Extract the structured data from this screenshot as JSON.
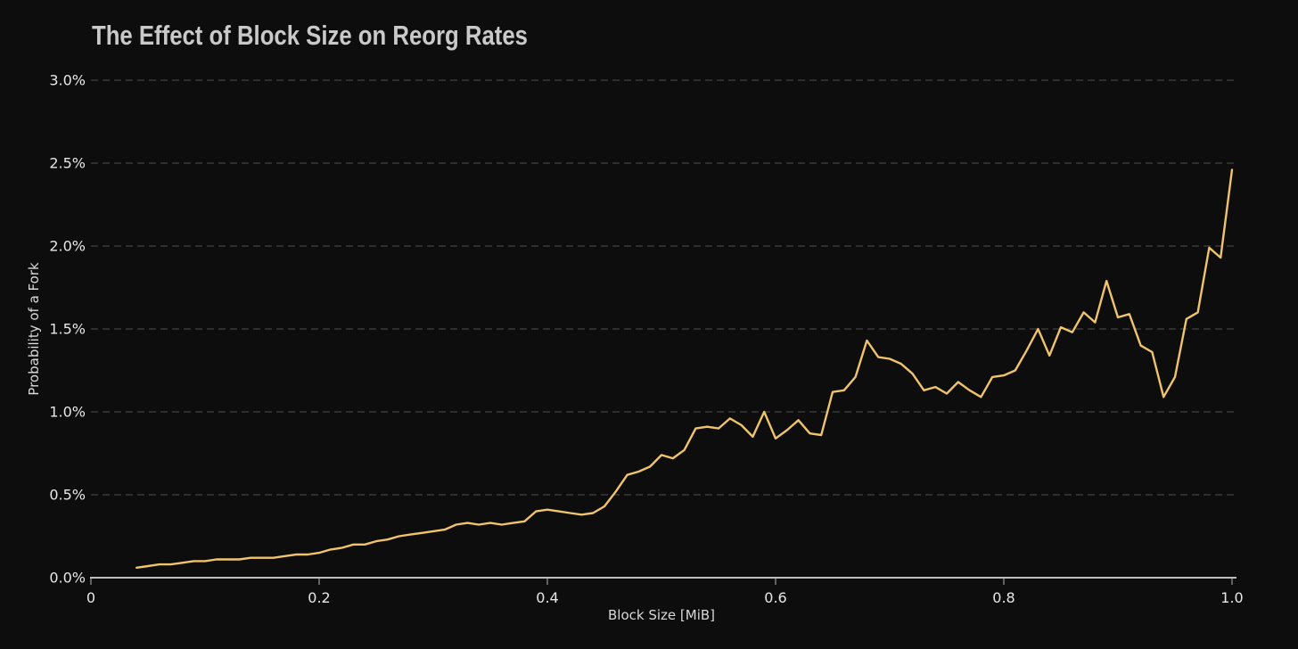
{
  "page": {
    "background": "#0d0d0d"
  },
  "chart_data": {
    "type": "line",
    "title": "The Effect of Block Size on Reorg Rates",
    "xlabel": "Block Size [MiB]",
    "ylabel": "Probability of a Fork",
    "xlim": [
      0,
      1.0
    ],
    "ylim": [
      0,
      3.0
    ],
    "grid": "horizontal dashed gridlines at each 0.5%",
    "legend_position": "none",
    "x_ticks": {
      "values": [
        0,
        0.2,
        0.4,
        0.6,
        0.8,
        1.0
      ],
      "labels": [
        "0",
        "0.2",
        "0.4",
        "0.6",
        "0.8",
        "1.0"
      ]
    },
    "y_ticks": {
      "values": [
        0,
        0.5,
        1.0,
        1.5,
        2.0,
        2.5,
        3.0
      ],
      "labels": [
        "0.0%",
        "0.5%",
        "1.0%",
        "1.5%",
        "2.0%",
        "2.5%",
        "3.0%"
      ]
    },
    "colors": {
      "background": "#0d0d0d",
      "line": "#f0c46a",
      "grid": "#4f4f4f",
      "axis": "#d8d8d8",
      "tick_mark": "#9a9a9a",
      "tick_text": "#e8e8e8",
      "title_text": "#c9c9c9",
      "axis_label_text": "#d9d9d9"
    },
    "series": [
      {
        "name": "Probability of a Fork",
        "color": "#f0c46a",
        "points": [
          [
            0.04,
            0.06
          ],
          [
            0.05,
            0.07
          ],
          [
            0.06,
            0.08
          ],
          [
            0.07,
            0.08
          ],
          [
            0.08,
            0.09
          ],
          [
            0.09,
            0.1
          ],
          [
            0.1,
            0.1
          ],
          [
            0.11,
            0.11
          ],
          [
            0.12,
            0.11
          ],
          [
            0.13,
            0.11
          ],
          [
            0.14,
            0.12
          ],
          [
            0.15,
            0.12
          ],
          [
            0.16,
            0.12
          ],
          [
            0.17,
            0.13
          ],
          [
            0.18,
            0.14
          ],
          [
            0.19,
            0.14
          ],
          [
            0.2,
            0.15
          ],
          [
            0.21,
            0.17
          ],
          [
            0.22,
            0.18
          ],
          [
            0.23,
            0.2
          ],
          [
            0.24,
            0.2
          ],
          [
            0.25,
            0.22
          ],
          [
            0.26,
            0.23
          ],
          [
            0.27,
            0.25
          ],
          [
            0.28,
            0.26
          ],
          [
            0.29,
            0.27
          ],
          [
            0.3,
            0.28
          ],
          [
            0.31,
            0.29
          ],
          [
            0.32,
            0.32
          ],
          [
            0.33,
            0.33
          ],
          [
            0.34,
            0.32
          ],
          [
            0.35,
            0.33
          ],
          [
            0.36,
            0.32
          ],
          [
            0.37,
            0.33
          ],
          [
            0.38,
            0.34
          ],
          [
            0.39,
            0.4
          ],
          [
            0.4,
            0.41
          ],
          [
            0.41,
            0.4
          ],
          [
            0.42,
            0.39
          ],
          [
            0.43,
            0.38
          ],
          [
            0.44,
            0.39
          ],
          [
            0.45,
            0.43
          ],
          [
            0.46,
            0.52
          ],
          [
            0.47,
            0.62
          ],
          [
            0.48,
            0.64
          ],
          [
            0.49,
            0.67
          ],
          [
            0.5,
            0.74
          ],
          [
            0.51,
            0.72
          ],
          [
            0.52,
            0.77
          ],
          [
            0.53,
            0.9
          ],
          [
            0.54,
            0.91
          ],
          [
            0.55,
            0.9
          ],
          [
            0.56,
            0.96
          ],
          [
            0.57,
            0.92
          ],
          [
            0.58,
            0.85
          ],
          [
            0.59,
            1.0
          ],
          [
            0.6,
            0.84
          ],
          [
            0.61,
            0.89
          ],
          [
            0.62,
            0.95
          ],
          [
            0.63,
            0.87
          ],
          [
            0.64,
            0.86
          ],
          [
            0.65,
            1.12
          ],
          [
            0.66,
            1.13
          ],
          [
            0.67,
            1.21
          ],
          [
            0.68,
            1.43
          ],
          [
            0.69,
            1.33
          ],
          [
            0.7,
            1.32
          ],
          [
            0.71,
            1.29
          ],
          [
            0.72,
            1.23
          ],
          [
            0.73,
            1.13
          ],
          [
            0.74,
            1.15
          ],
          [
            0.75,
            1.11
          ],
          [
            0.76,
            1.18
          ],
          [
            0.77,
            1.13
          ],
          [
            0.78,
            1.09
          ],
          [
            0.79,
            1.21
          ],
          [
            0.8,
            1.22
          ],
          [
            0.81,
            1.25
          ],
          [
            0.82,
            1.37
          ],
          [
            0.83,
            1.5
          ],
          [
            0.84,
            1.34
          ],
          [
            0.85,
            1.51
          ],
          [
            0.86,
            1.48
          ],
          [
            0.87,
            1.6
          ],
          [
            0.88,
            1.54
          ],
          [
            0.89,
            1.79
          ],
          [
            0.9,
            1.57
          ],
          [
            0.91,
            1.59
          ],
          [
            0.92,
            1.4
          ],
          [
            0.93,
            1.36
          ],
          [
            0.94,
            1.09
          ],
          [
            0.95,
            1.21
          ],
          [
            0.96,
            1.56
          ],
          [
            0.97,
            1.6
          ],
          [
            0.98,
            1.99
          ],
          [
            0.99,
            1.93
          ],
          [
            1.0,
            2.46
          ]
        ]
      }
    ]
  }
}
